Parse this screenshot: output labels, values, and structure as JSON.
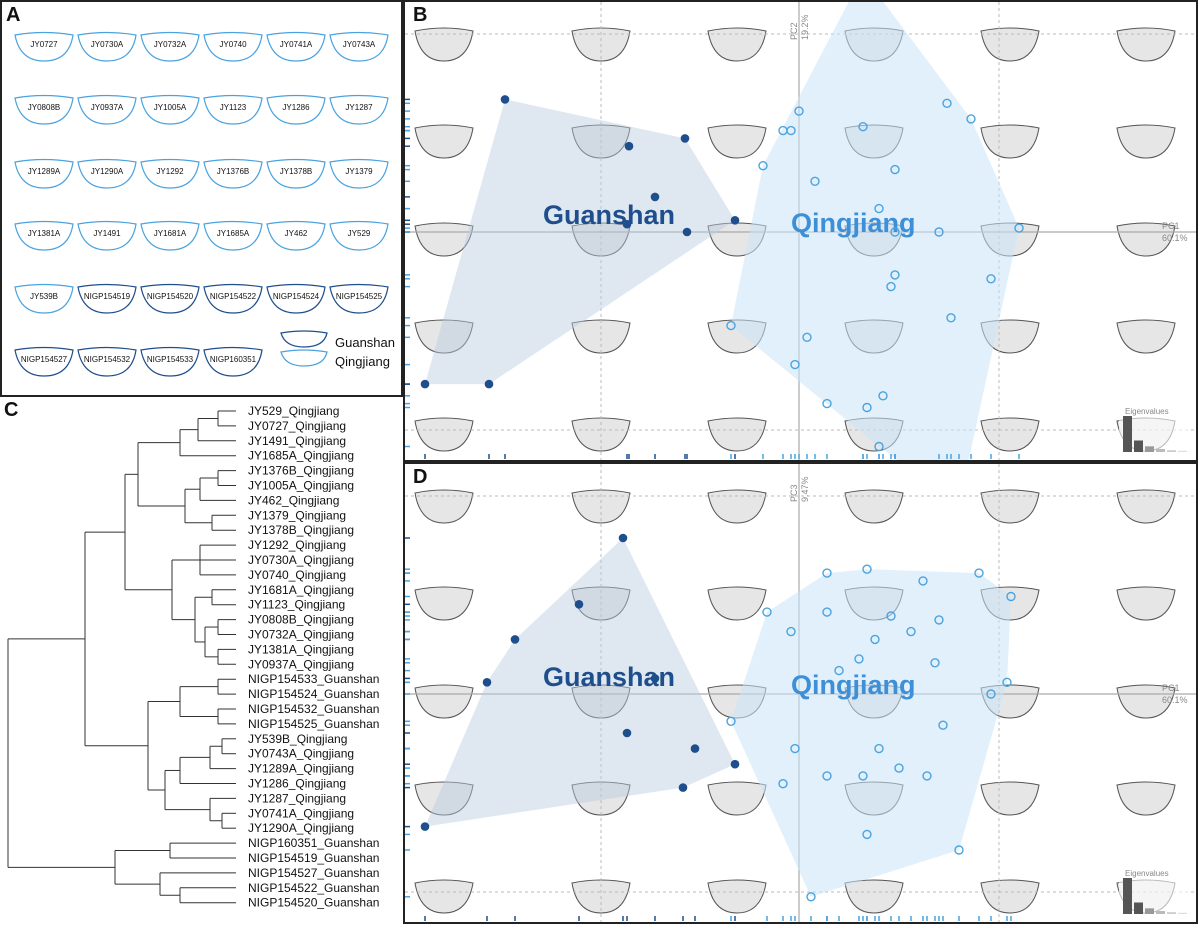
{
  "panels": {
    "a": "A",
    "b": "B",
    "c": "C",
    "d": "D"
  },
  "outlines": {
    "specimens": [
      {
        "id": "JY0727",
        "group": "Qingjiang"
      },
      {
        "id": "JY0730A",
        "group": "Qingjiang"
      },
      {
        "id": "JY0732A",
        "group": "Qingjiang"
      },
      {
        "id": "JY0740",
        "group": "Qingjiang"
      },
      {
        "id": "JY0741A",
        "group": "Qingjiang"
      },
      {
        "id": "JY0743A",
        "group": "Qingjiang"
      },
      {
        "id": "JY0808B",
        "group": "Qingjiang"
      },
      {
        "id": "JY0937A",
        "group": "Qingjiang"
      },
      {
        "id": "JY1005A",
        "group": "Qingjiang"
      },
      {
        "id": "JY1123",
        "group": "Qingjiang"
      },
      {
        "id": "JY1286",
        "group": "Qingjiang"
      },
      {
        "id": "JY1287",
        "group": "Qingjiang"
      },
      {
        "id": "JY1289A",
        "group": "Qingjiang"
      },
      {
        "id": "JY1290A",
        "group": "Qingjiang"
      },
      {
        "id": "JY1292",
        "group": "Qingjiang"
      },
      {
        "id": "JY1376B",
        "group": "Qingjiang"
      },
      {
        "id": "JY1378B",
        "group": "Qingjiang"
      },
      {
        "id": "JY1379",
        "group": "Qingjiang"
      },
      {
        "id": "JY1381A",
        "group": "Qingjiang"
      },
      {
        "id": "JY1491",
        "group": "Qingjiang"
      },
      {
        "id": "JY1681A",
        "group": "Qingjiang"
      },
      {
        "id": "JY1685A",
        "group": "Qingjiang"
      },
      {
        "id": "JY462",
        "group": "Qingjiang"
      },
      {
        "id": "JY529",
        "group": "Qingjiang"
      },
      {
        "id": "JY539B",
        "group": "Qingjiang"
      },
      {
        "id": "NIGP154519",
        "group": "Guanshan"
      },
      {
        "id": "NIGP154520",
        "group": "Guanshan"
      },
      {
        "id": "NIGP154522",
        "group": "Guanshan"
      },
      {
        "id": "NIGP154524",
        "group": "Guanshan"
      },
      {
        "id": "NIGP154525",
        "group": "Guanshan"
      },
      {
        "id": "NIGP154527",
        "group": "Guanshan"
      },
      {
        "id": "NIGP154532",
        "group": "Guanshan"
      },
      {
        "id": "NIGP154533",
        "group": "Guanshan"
      },
      {
        "id": "NIGP160351",
        "group": "Guanshan"
      }
    ],
    "legend": [
      {
        "label": "Guanshan",
        "color": "#1f4e8c"
      },
      {
        "label": "Qingjiang",
        "color": "#4aa3df"
      }
    ]
  },
  "tree": {
    "tips": [
      "JY529_Qingjiang",
      "JY0727_Qingjiang",
      "JY1491_Qingjiang",
      "JY1685A_Qingjiang",
      "JY1376B_Qingjiang",
      "JY1005A_Qingjiang",
      "JY462_Qingjiang",
      "JY1379_Qingjiang",
      "JY1378B_Qingjiang",
      "JY1292_Qingjiang",
      "JY0730A_Qingjiang",
      "JY0740_Qingjiang",
      "JY1681A_Qingjiang",
      "JY1123_Qingjiang",
      "JY0808B_Qingjiang",
      "JY0732A_Qingjiang",
      "JY1381A_Qingjiang",
      "JY0937A_Qingjiang",
      "NIGP154533_Guanshan",
      "NIGP154524_Guanshan",
      "NIGP154532_Guanshan",
      "NIGP154525_Guanshan",
      "JY539B_Qingjiang",
      "JY0743A_Qingjiang",
      "JY1289A_Qingjiang",
      "JY1286_Qingjiang",
      "JY1287_Qingjiang",
      "JY0741A_Qingjiang",
      "JY1290A_Qingjiang",
      "NIGP160351_Guanshan",
      "NIGP154519_Guanshan",
      "NIGP154527_Guanshan",
      "NIGP154522_Guanshan",
      "NIGP154520_Guanshan"
    ]
  },
  "chart_data": [
    {
      "panel": "B",
      "type": "scatter",
      "xlabel": "PC1\n60.1%",
      "ylabel": "PC2\n19.2%",
      "xlim": [
        -1,
        1
      ],
      "ylim": [
        -1,
        1
      ],
      "grid": true,
      "series": [
        {
          "name": "Guanshan",
          "marker": "filled",
          "color": "#1f4e8c",
          "points": [
            [
              -0.935,
              -0.39
            ],
            [
              -0.775,
              -0.39
            ],
            [
              -0.735,
              0.34
            ],
            [
              -0.425,
              0.22
            ],
            [
              -0.285,
              0.24
            ],
            [
              -0.43,
              0.02
            ],
            [
              -0.36,
              0.09
            ],
            [
              -0.28,
              0.0
            ],
            [
              -0.16,
              0.03
            ]
          ]
        },
        {
          "name": "Qingjiang",
          "marker": "open",
          "color": "#4aa3df",
          "points": [
            [
              0.16,
              0.66
            ],
            [
              0.0,
              0.31
            ],
            [
              -0.04,
              0.26
            ],
            [
              -0.02,
              0.26
            ],
            [
              0.16,
              0.27
            ],
            [
              0.37,
              0.33
            ],
            [
              0.43,
              0.29
            ],
            [
              0.24,
              0.16
            ],
            [
              -0.09,
              0.17
            ],
            [
              0.04,
              0.13
            ],
            [
              0.2,
              0.06
            ],
            [
              0.24,
              0.0
            ],
            [
              0.35,
              0.0
            ],
            [
              0.55,
              0.01
            ],
            [
              0.48,
              -0.12
            ],
            [
              0.24,
              -0.11
            ],
            [
              0.23,
              -0.14
            ],
            [
              0.38,
              -0.22
            ],
            [
              -0.17,
              -0.24
            ],
            [
              0.02,
              -0.27
            ],
            [
              -0.01,
              -0.34
            ],
            [
              0.07,
              -0.44
            ],
            [
              0.17,
              -0.45
            ],
            [
              0.21,
              -0.42
            ],
            [
              0.2,
              -0.55
            ],
            [
              0.4,
              -0.7
            ]
          ]
        }
      ]
    },
    {
      "panel": "D",
      "type": "scatter",
      "xlabel": "PC1\n60.1%",
      "ylabel": "PC3\n9.47%",
      "xlim": [
        -1,
        1
      ],
      "ylim": [
        -1,
        1
      ],
      "grid": true,
      "series": [
        {
          "name": "Guanshan",
          "marker": "filled",
          "color": "#1f4e8c",
          "points": [
            [
              -0.44,
              0.4
            ],
            [
              -0.55,
              0.23
            ],
            [
              -0.71,
              0.14
            ],
            [
              -0.78,
              0.03
            ],
            [
              -0.935,
              -0.34
            ],
            [
              -0.36,
              0.04
            ],
            [
              -0.43,
              -0.1
            ],
            [
              -0.26,
              -0.14
            ],
            [
              -0.29,
              -0.24
            ],
            [
              -0.16,
              -0.18
            ]
          ]
        },
        {
          "name": "Qingjiang",
          "marker": "open",
          "color": "#4aa3df",
          "points": [
            [
              0.07,
              0.31
            ],
            [
              0.17,
              0.32
            ],
            [
              0.31,
              0.29
            ],
            [
              0.45,
              0.31
            ],
            [
              0.53,
              0.25
            ],
            [
              0.07,
              0.21
            ],
            [
              -0.08,
              0.21
            ],
            [
              -0.02,
              0.16
            ],
            [
              0.28,
              0.16
            ],
            [
              0.23,
              0.2
            ],
            [
              0.19,
              0.14
            ],
            [
              0.35,
              0.19
            ],
            [
              0.15,
              0.09
            ],
            [
              0.1,
              0.06
            ],
            [
              0.34,
              0.08
            ],
            [
              0.48,
              0.0
            ],
            [
              0.52,
              0.03
            ],
            [
              -0.17,
              -0.07
            ],
            [
              0.36,
              -0.08
            ],
            [
              -0.01,
              -0.14
            ],
            [
              0.2,
              -0.14
            ],
            [
              0.25,
              -0.19
            ],
            [
              0.16,
              -0.21
            ],
            [
              0.07,
              -0.21
            ],
            [
              0.32,
              -0.21
            ],
            [
              -0.04,
              -0.23
            ],
            [
              0.17,
              -0.36
            ],
            [
              0.4,
              -0.4
            ],
            [
              0.03,
              -0.52
            ]
          ]
        }
      ]
    }
  ],
  "scatter_texts": {
    "b": {
      "guanshan": "Guanshan",
      "qingjiang": "Qingjiang",
      "pc1": "PC1",
      "pc1_pct": "60.1%",
      "pc2": "PC2",
      "pc2_pct": "19.2%",
      "eigen": "Eigenvalues"
    },
    "d": {
      "guanshan": "Guanshan",
      "qingjiang": "Qingjiang",
      "pc1": "PC1",
      "pc1_pct": "60.1%",
      "pc3": "PC3",
      "pc3_pct": "9.47%",
      "eigen": "Eigenvalues"
    }
  },
  "eigenvalues": [
    0.601,
    0.192,
    0.0947,
    0.05,
    0.03,
    0.02
  ]
}
